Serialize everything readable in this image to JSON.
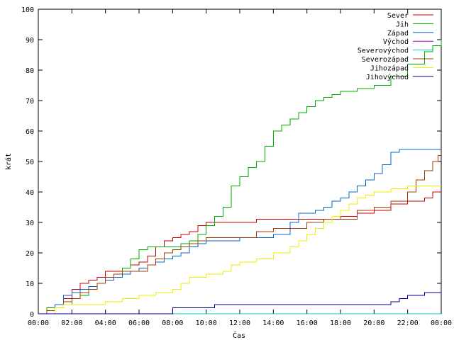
{
  "chart_data": {
    "type": "line",
    "title": "",
    "xlabel": "Čas",
    "ylabel": "krát",
    "xlim": [
      0,
      24
    ],
    "ylim": [
      0,
      100
    ],
    "x_ticks": [
      "00:00",
      "02:00",
      "04:00",
      "06:00",
      "08:00",
      "10:00",
      "12:00",
      "14:00",
      "16:00",
      "18:00",
      "20:00",
      "22:00",
      "00:00"
    ],
    "y_ticks": [
      0,
      10,
      20,
      30,
      40,
      50,
      60,
      70,
      80,
      90,
      100
    ],
    "grid": false,
    "legend_position": "top-right",
    "series": [
      {
        "name": "Sever",
        "color": "#cc0000",
        "points": [
          [
            0,
            0
          ],
          [
            0.5,
            1
          ],
          [
            1.0,
            3
          ],
          [
            1.5,
            5
          ],
          [
            2.0,
            8
          ],
          [
            2.5,
            10
          ],
          [
            3.0,
            11
          ],
          [
            3.5,
            12
          ],
          [
            4.0,
            14
          ],
          [
            5.0,
            15
          ],
          [
            5.5,
            16
          ],
          [
            6.0,
            17
          ],
          [
            6.5,
            19
          ],
          [
            7.0,
            22
          ],
          [
            7.5,
            24
          ],
          [
            8.0,
            25
          ],
          [
            8.5,
            26
          ],
          [
            9.0,
            27
          ],
          [
            9.5,
            29
          ],
          [
            10.0,
            30
          ],
          [
            11.0,
            30
          ],
          [
            12.0,
            30
          ],
          [
            13.0,
            31
          ],
          [
            15.0,
            31
          ],
          [
            17.0,
            31
          ],
          [
            18.0,
            32
          ],
          [
            19.0,
            33
          ],
          [
            20.0,
            34
          ],
          [
            21.0,
            36
          ],
          [
            22.0,
            37
          ],
          [
            23.0,
            38
          ],
          [
            23.5,
            40
          ],
          [
            24.0,
            40
          ]
        ]
      },
      {
        "name": "Jih",
        "color": "#00aa00",
        "points": [
          [
            0,
            0
          ],
          [
            0.5,
            2
          ],
          [
            1.0,
            3
          ],
          [
            1.5,
            3
          ],
          [
            2.0,
            5
          ],
          [
            2.5,
            6
          ],
          [
            3.0,
            8
          ],
          [
            3.5,
            10
          ],
          [
            4.0,
            12
          ],
          [
            4.5,
            13
          ],
          [
            5.0,
            15
          ],
          [
            5.5,
            18
          ],
          [
            6.0,
            21
          ],
          [
            6.5,
            22
          ],
          [
            7.0,
            22
          ],
          [
            7.5,
            22
          ],
          [
            8.0,
            22
          ],
          [
            8.5,
            23
          ],
          [
            9.0,
            24
          ],
          [
            9.5,
            26
          ],
          [
            10.0,
            29
          ],
          [
            10.5,
            32
          ],
          [
            11.0,
            35
          ],
          [
            11.5,
            42
          ],
          [
            12.0,
            45
          ],
          [
            12.5,
            48
          ],
          [
            13.0,
            50
          ],
          [
            13.5,
            55
          ],
          [
            14.0,
            60
          ],
          [
            14.5,
            62
          ],
          [
            15.0,
            64
          ],
          [
            15.5,
            66
          ],
          [
            16.0,
            68
          ],
          [
            16.5,
            70
          ],
          [
            17.0,
            71
          ],
          [
            17.5,
            72
          ],
          [
            18.0,
            73
          ],
          [
            19.0,
            74
          ],
          [
            20.0,
            75
          ],
          [
            21.0,
            78
          ],
          [
            22.0,
            82
          ],
          [
            23.0,
            86
          ],
          [
            23.5,
            88
          ],
          [
            24.0,
            90
          ]
        ]
      },
      {
        "name": "Západ",
        "color": "#0066cc",
        "points": [
          [
            0,
            0
          ],
          [
            0.5,
            1
          ],
          [
            1.0,
            3
          ],
          [
            1.5,
            6
          ],
          [
            2.0,
            7
          ],
          [
            2.5,
            8
          ],
          [
            3.0,
            9
          ],
          [
            3.5,
            10
          ],
          [
            4.0,
            11
          ],
          [
            4.5,
            12
          ],
          [
            5.0,
            13
          ],
          [
            5.5,
            14
          ],
          [
            6.0,
            15
          ],
          [
            6.5,
            16
          ],
          [
            7.0,
            17
          ],
          [
            7.5,
            18
          ],
          [
            8.0,
            19
          ],
          [
            8.5,
            20
          ],
          [
            9.0,
            22
          ],
          [
            9.5,
            23
          ],
          [
            10.0,
            24
          ],
          [
            11.0,
            24
          ],
          [
            12.0,
            25
          ],
          [
            13.0,
            25
          ],
          [
            14.0,
            26
          ],
          [
            15.0,
            30
          ],
          [
            15.5,
            33
          ],
          [
            16.5,
            34
          ],
          [
            17.0,
            35
          ],
          [
            17.5,
            37
          ],
          [
            18.0,
            38
          ],
          [
            18.5,
            40
          ],
          [
            19.0,
            42
          ],
          [
            19.5,
            44
          ],
          [
            20.0,
            46
          ],
          [
            20.5,
            49
          ],
          [
            21.0,
            53
          ],
          [
            21.5,
            54
          ],
          [
            22.0,
            54
          ],
          [
            23.0,
            54
          ],
          [
            24.0,
            54
          ]
        ]
      },
      {
        "name": "Východ",
        "color": "#aa00aa",
        "points": [
          [
            0,
            0
          ],
          [
            24,
            0
          ]
        ]
      },
      {
        "name": "Severovýchod",
        "color": "#00cccc",
        "points": [
          [
            0,
            0
          ],
          [
            24,
            0
          ]
        ]
      },
      {
        "name": "Severozápad",
        "color": "#a03c00",
        "points": [
          [
            0,
            0
          ],
          [
            0.5,
            1
          ],
          [
            1.0,
            2
          ],
          [
            1.5,
            4
          ],
          [
            2.0,
            5
          ],
          [
            2.5,
            7
          ],
          [
            3.0,
            8
          ],
          [
            3.5,
            10
          ],
          [
            4.0,
            12
          ],
          [
            4.5,
            13
          ],
          [
            5.0,
            14
          ],
          [
            6.0,
            14
          ],
          [
            6.5,
            16
          ],
          [
            7.0,
            18
          ],
          [
            7.5,
            20
          ],
          [
            8.0,
            21
          ],
          [
            8.5,
            22
          ],
          [
            9.0,
            23
          ],
          [
            9.5,
            24
          ],
          [
            10.0,
            25
          ],
          [
            11.0,
            25
          ],
          [
            12.0,
            25
          ],
          [
            13.0,
            27
          ],
          [
            14.0,
            28
          ],
          [
            15.0,
            28
          ],
          [
            16.0,
            30
          ],
          [
            17.0,
            31
          ],
          [
            18.0,
            31
          ],
          [
            19.0,
            34
          ],
          [
            20.0,
            35
          ],
          [
            21.0,
            37
          ],
          [
            22.0,
            40
          ],
          [
            22.5,
            44
          ],
          [
            23.0,
            47
          ],
          [
            23.5,
            50
          ],
          [
            23.8,
            52
          ],
          [
            24.0,
            52
          ]
        ]
      },
      {
        "name": "Jihozápad",
        "color": "#eeee00",
        "points": [
          [
            0,
            0
          ],
          [
            1.0,
            2
          ],
          [
            1.5,
            3
          ],
          [
            3.0,
            3
          ],
          [
            4.0,
            4
          ],
          [
            5.0,
            5
          ],
          [
            6.0,
            6
          ],
          [
            7.0,
            7
          ],
          [
            8.0,
            8
          ],
          [
            8.5,
            10
          ],
          [
            9.0,
            12
          ],
          [
            10.0,
            13
          ],
          [
            11.0,
            14
          ],
          [
            11.5,
            16
          ],
          [
            12.0,
            17
          ],
          [
            13.0,
            18
          ],
          [
            14.0,
            20
          ],
          [
            15.0,
            22
          ],
          [
            15.5,
            24
          ],
          [
            16.0,
            26
          ],
          [
            16.5,
            28
          ],
          [
            17.0,
            30
          ],
          [
            17.5,
            32
          ],
          [
            18.0,
            34
          ],
          [
            18.5,
            36
          ],
          [
            19.0,
            38
          ],
          [
            19.5,
            39
          ],
          [
            20.0,
            40
          ],
          [
            21.0,
            41
          ],
          [
            22.0,
            42
          ],
          [
            23.0,
            42
          ],
          [
            24.0,
            42
          ]
        ]
      },
      {
        "name": "Jihovýchod",
        "color": "#000099",
        "points": [
          [
            0,
            0
          ],
          [
            8.0,
            0
          ],
          [
            8.0,
            2
          ],
          [
            10.0,
            2
          ],
          [
            10.5,
            3
          ],
          [
            14.0,
            3
          ],
          [
            18.0,
            3
          ],
          [
            20.0,
            3
          ],
          [
            21.0,
            4
          ],
          [
            21.5,
            5
          ],
          [
            22.0,
            6
          ],
          [
            23.0,
            7
          ],
          [
            24.0,
            7
          ]
        ]
      }
    ]
  }
}
